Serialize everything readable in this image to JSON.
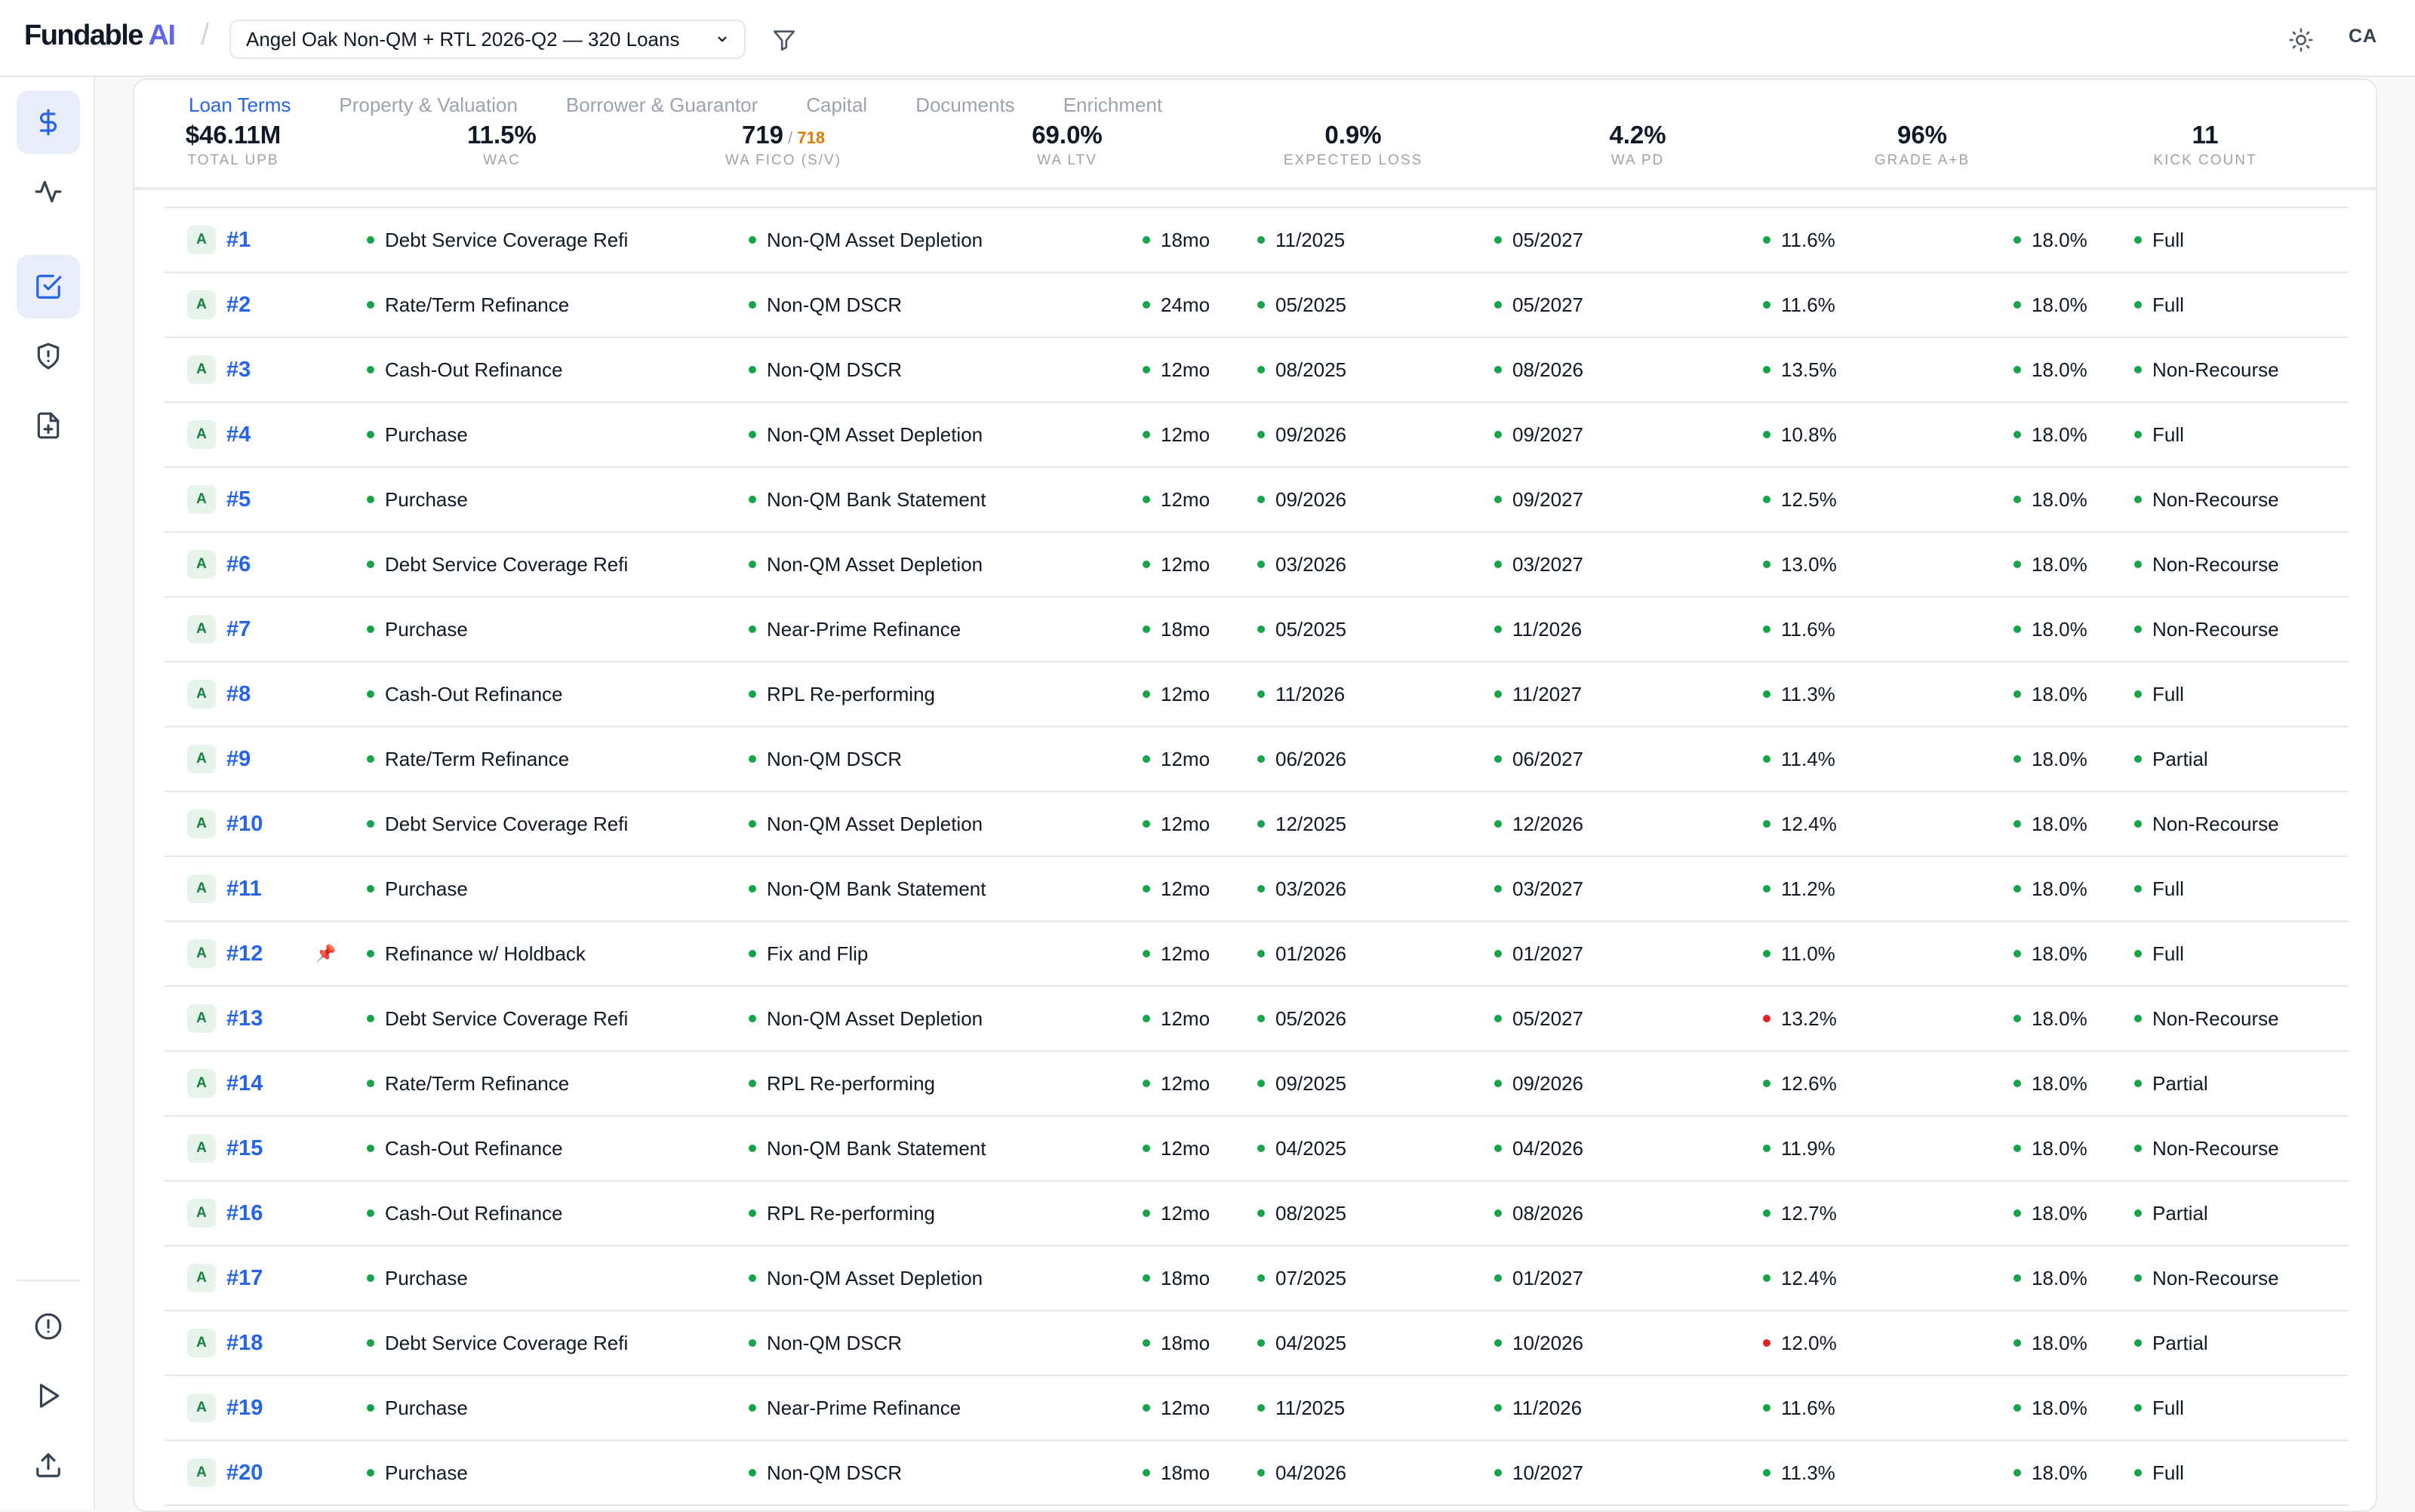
{
  "app": {
    "brand_main": "Fundable",
    "brand_ai": "AI",
    "separator": "/",
    "avatar_initials": "CA"
  },
  "pool_selector": {
    "value": "Angel Oak Non-QM + RTL 2026-Q2 — 320 Loans"
  },
  "icons": {
    "filter": "filter-icon",
    "theme": "sun-icon",
    "dropdown": "chevron-down-icon",
    "sidebar": [
      "dollar-icon",
      "activity-icon",
      "checkbox-icon",
      "shield-icon",
      "file-plus-icon",
      "alert-circle-icon",
      "play-icon",
      "upload-icon"
    ]
  },
  "tabs": [
    "Loan Terms",
    "Property & Valuation",
    "Borrower & Guarantor",
    "Capital",
    "Documents",
    "Enrichment"
  ],
  "active_tab": "Loan Terms",
  "kpis": [
    {
      "value": "$46.11M",
      "label": "TOTAL UPB"
    },
    {
      "value": "11.5%",
      "label": "WAC"
    },
    {
      "value": "719",
      "sep": " / ",
      "value2": "718",
      "label": "WA FICO (S/V)"
    },
    {
      "value": "69.0%",
      "label": "WA LTV"
    },
    {
      "value": "0.9%",
      "label": "EXPECTED LOSS"
    },
    {
      "value": "4.2%",
      "label": "WA PD"
    },
    {
      "value": "96%",
      "label": "GRADE A+B"
    },
    {
      "value": "11",
      "label": "KICK COUNT"
    }
  ],
  "colors": {
    "accent": "#2563eb",
    "brand_ai": "#6366f1",
    "status_ok": "#16a34a",
    "status_flag": "#dc2626",
    "fico_secondary": "#e07b00",
    "grade_bg": "#e6f4ec"
  },
  "rows": [
    {
      "grade": "A",
      "id": "#1",
      "pinned": false,
      "purpose": "Debt Service Coverage Refi",
      "program": "Non-QM Asset Depletion",
      "term": "18mo",
      "orig": "11/2025",
      "maturity": "05/2027",
      "rate": "11.6%",
      "rate_flag": false,
      "default_rate": "18.0%",
      "recourse": "Full"
    },
    {
      "grade": "A",
      "id": "#2",
      "pinned": false,
      "purpose": "Rate/Term Refinance",
      "program": "Non-QM DSCR",
      "term": "24mo",
      "orig": "05/2025",
      "maturity": "05/2027",
      "rate": "11.6%",
      "rate_flag": false,
      "default_rate": "18.0%",
      "recourse": "Full"
    },
    {
      "grade": "A",
      "id": "#3",
      "pinned": false,
      "purpose": "Cash-Out Refinance",
      "program": "Non-QM DSCR",
      "term": "12mo",
      "orig": "08/2025",
      "maturity": "08/2026",
      "rate": "13.5%",
      "rate_flag": false,
      "default_rate": "18.0%",
      "recourse": "Non-Recourse"
    },
    {
      "grade": "A",
      "id": "#4",
      "pinned": false,
      "purpose": "Purchase",
      "program": "Non-QM Asset Depletion",
      "term": "12mo",
      "orig": "09/2026",
      "maturity": "09/2027",
      "rate": "10.8%",
      "rate_flag": false,
      "default_rate": "18.0%",
      "recourse": "Full"
    },
    {
      "grade": "A",
      "id": "#5",
      "pinned": false,
      "purpose": "Purchase",
      "program": "Non-QM Bank Statement",
      "term": "12mo",
      "orig": "09/2026",
      "maturity": "09/2027",
      "rate": "12.5%",
      "rate_flag": false,
      "default_rate": "18.0%",
      "recourse": "Non-Recourse"
    },
    {
      "grade": "A",
      "id": "#6",
      "pinned": false,
      "purpose": "Debt Service Coverage Refi",
      "program": "Non-QM Asset Depletion",
      "term": "12mo",
      "orig": "03/2026",
      "maturity": "03/2027",
      "rate": "13.0%",
      "rate_flag": false,
      "default_rate": "18.0%",
      "recourse": "Non-Recourse"
    },
    {
      "grade": "A",
      "id": "#7",
      "pinned": false,
      "purpose": "Purchase",
      "program": "Near-Prime Refinance",
      "term": "18mo",
      "orig": "05/2025",
      "maturity": "11/2026",
      "rate": "11.6%",
      "rate_flag": false,
      "default_rate": "18.0%",
      "recourse": "Non-Recourse"
    },
    {
      "grade": "A",
      "id": "#8",
      "pinned": false,
      "purpose": "Cash-Out Refinance",
      "program": "RPL Re-performing",
      "term": "12mo",
      "orig": "11/2026",
      "maturity": "11/2027",
      "rate": "11.3%",
      "rate_flag": false,
      "default_rate": "18.0%",
      "recourse": "Full"
    },
    {
      "grade": "A",
      "id": "#9",
      "pinned": false,
      "purpose": "Rate/Term Refinance",
      "program": "Non-QM DSCR",
      "term": "12mo",
      "orig": "06/2026",
      "maturity": "06/2027",
      "rate": "11.4%",
      "rate_flag": false,
      "default_rate": "18.0%",
      "recourse": "Partial"
    },
    {
      "grade": "A",
      "id": "#10",
      "pinned": false,
      "purpose": "Debt Service Coverage Refi",
      "program": "Non-QM Asset Depletion",
      "term": "12mo",
      "orig": "12/2025",
      "maturity": "12/2026",
      "rate": "12.4%",
      "rate_flag": false,
      "default_rate": "18.0%",
      "recourse": "Non-Recourse"
    },
    {
      "grade": "A",
      "id": "#11",
      "pinned": false,
      "purpose": "Purchase",
      "program": "Non-QM Bank Statement",
      "term": "12mo",
      "orig": "03/2026",
      "maturity": "03/2027",
      "rate": "11.2%",
      "rate_flag": false,
      "default_rate": "18.0%",
      "recourse": "Full"
    },
    {
      "grade": "A",
      "id": "#12",
      "pinned": true,
      "purpose": "Refinance w/ Holdback",
      "program": "Fix and Flip",
      "term": "12mo",
      "orig": "01/2026",
      "maturity": "01/2027",
      "rate": "11.0%",
      "rate_flag": false,
      "default_rate": "18.0%",
      "recourse": "Full"
    },
    {
      "grade": "A",
      "id": "#13",
      "pinned": false,
      "purpose": "Debt Service Coverage Refi",
      "program": "Non-QM Asset Depletion",
      "term": "12mo",
      "orig": "05/2026",
      "maturity": "05/2027",
      "rate": "13.2%",
      "rate_flag": true,
      "default_rate": "18.0%",
      "recourse": "Non-Recourse"
    },
    {
      "grade": "A",
      "id": "#14",
      "pinned": false,
      "purpose": "Rate/Term Refinance",
      "program": "RPL Re-performing",
      "term": "12mo",
      "orig": "09/2025",
      "maturity": "09/2026",
      "rate": "12.6%",
      "rate_flag": false,
      "default_rate": "18.0%",
      "recourse": "Partial"
    },
    {
      "grade": "A",
      "id": "#15",
      "pinned": false,
      "purpose": "Cash-Out Refinance",
      "program": "Non-QM Bank Statement",
      "term": "12mo",
      "orig": "04/2025",
      "maturity": "04/2026",
      "rate": "11.9%",
      "rate_flag": false,
      "default_rate": "18.0%",
      "recourse": "Non-Recourse"
    },
    {
      "grade": "A",
      "id": "#16",
      "pinned": false,
      "purpose": "Cash-Out Refinance",
      "program": "RPL Re-performing",
      "term": "12mo",
      "orig": "08/2025",
      "maturity": "08/2026",
      "rate": "12.7%",
      "rate_flag": false,
      "default_rate": "18.0%",
      "recourse": "Partial"
    },
    {
      "grade": "A",
      "id": "#17",
      "pinned": false,
      "purpose": "Purchase",
      "program": "Non-QM Asset Depletion",
      "term": "18mo",
      "orig": "07/2025",
      "maturity": "01/2027",
      "rate": "12.4%",
      "rate_flag": false,
      "default_rate": "18.0%",
      "recourse": "Non-Recourse"
    },
    {
      "grade": "A",
      "id": "#18",
      "pinned": false,
      "purpose": "Debt Service Coverage Refi",
      "program": "Non-QM DSCR",
      "term": "18mo",
      "orig": "04/2025",
      "maturity": "10/2026",
      "rate": "12.0%",
      "rate_flag": true,
      "default_rate": "18.0%",
      "recourse": "Partial"
    },
    {
      "grade": "A",
      "id": "#19",
      "pinned": false,
      "purpose": "Purchase",
      "program": "Near-Prime Refinance",
      "term": "12mo",
      "orig": "11/2025",
      "maturity": "11/2026",
      "rate": "11.6%",
      "rate_flag": false,
      "default_rate": "18.0%",
      "recourse": "Full"
    },
    {
      "grade": "A",
      "id": "#20",
      "pinned": false,
      "purpose": "Purchase",
      "program": "Non-QM DSCR",
      "term": "18mo",
      "orig": "04/2026",
      "maturity": "10/2027",
      "rate": "11.3%",
      "rate_flag": false,
      "default_rate": "18.0%",
      "recourse": "Full"
    }
  ]
}
